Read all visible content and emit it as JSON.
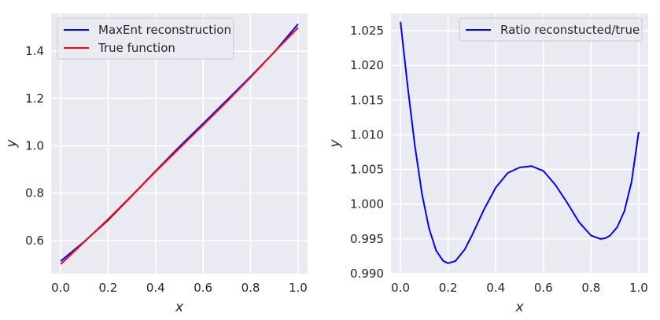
{
  "chart_data": [
    {
      "type": "line",
      "xlabel": "x",
      "ylabel": "y",
      "xlim": [
        -0.04,
        1.04
      ],
      "ylim": [
        0.46,
        1.56
      ],
      "xticks": [
        0.0,
        0.2,
        0.4,
        0.6,
        0.8,
        1.0
      ],
      "xtick_labels": [
        "0.0",
        "0.2",
        "0.4",
        "0.6",
        "0.8",
        "1.0"
      ],
      "yticks": [
        0.6,
        0.8,
        1.0,
        1.2,
        1.4
      ],
      "ytick_labels": [
        "0.6",
        "0.8",
        "1.0",
        "1.2",
        "1.4"
      ],
      "grid": true,
      "legend_position": "top-left",
      "series": [
        {
          "name": "MaxEnt reconstruction",
          "color": "#0000ff",
          "x": [
            0.0,
            0.1,
            0.2,
            0.3,
            0.4,
            0.5,
            0.6,
            0.7,
            0.8,
            0.9,
            1.0
          ],
          "y": [
            0.513,
            0.596,
            0.686,
            0.789,
            0.894,
            0.996,
            1.094,
            1.193,
            1.293,
            1.396,
            1.515
          ]
        },
        {
          "name": "True function",
          "color": "#ff0000",
          "x": [
            0.0,
            0.1,
            0.2,
            0.3,
            0.4,
            0.5,
            0.6,
            0.7,
            0.8,
            0.9,
            1.0
          ],
          "y": [
            0.5,
            0.595,
            0.69,
            0.79,
            0.892,
            0.99,
            1.088,
            1.187,
            1.29,
            1.397,
            1.5
          ]
        }
      ]
    },
    {
      "type": "line",
      "xlabel": "x",
      "ylabel": "y",
      "xlim": [
        -0.04,
        1.04
      ],
      "ylim": [
        0.99,
        1.0275
      ],
      "xticks": [
        0.0,
        0.2,
        0.4,
        0.6,
        0.8,
        1.0
      ],
      "xtick_labels": [
        "0.0",
        "0.2",
        "0.4",
        "0.6",
        "0.8",
        "1.0"
      ],
      "yticks": [
        0.99,
        0.995,
        1.0,
        1.005,
        1.01,
        1.015,
        1.02,
        1.025
      ],
      "ytick_labels": [
        "0.990",
        "0.995",
        "1.000",
        "1.005",
        "1.010",
        "1.015",
        "1.020",
        "1.025"
      ],
      "grid": true,
      "legend_position": "top-right",
      "series": [
        {
          "name": "Ratio reconstucted/true",
          "color": "#0000ff",
          "x": [
            0.0,
            0.03,
            0.06,
            0.09,
            0.12,
            0.15,
            0.18,
            0.2,
            0.23,
            0.27,
            0.3,
            0.35,
            0.4,
            0.45,
            0.5,
            0.55,
            0.6,
            0.65,
            0.7,
            0.75,
            0.8,
            0.84,
            0.86,
            0.88,
            0.91,
            0.94,
            0.97,
            1.0
          ],
          "y": [
            1.0263,
            1.017,
            1.0085,
            1.0015,
            0.9965,
            0.9933,
            0.9918,
            0.9915,
            0.9918,
            0.9935,
            0.9955,
            0.9992,
            1.0024,
            1.0045,
            1.0053,
            1.0055,
            1.0048,
            1.0028,
            1.0002,
            0.9974,
            0.9955,
            0.995,
            0.9951,
            0.9955,
            0.9967,
            0.999,
            1.0032,
            1.0104
          ]
        }
      ]
    }
  ]
}
